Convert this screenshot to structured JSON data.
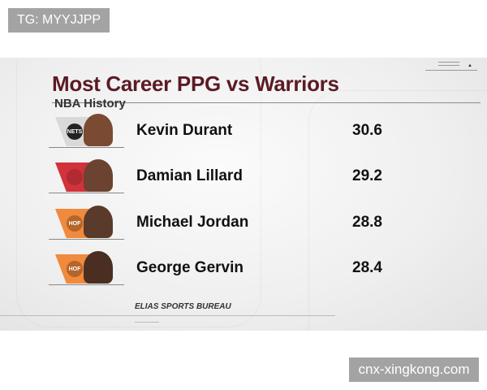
{
  "watermarks": {
    "top_left": "TG: MYYJJPP",
    "bottom_right": "cnx-xingkong.com"
  },
  "graphic": {
    "title": "Most Career PPG vs Warriors",
    "subtitle": "NBA History",
    "source": "ELIAS SPORTS BUREAU",
    "players": [
      {
        "name": "Kevin Durant",
        "ppg": "30.6",
        "team_logo": "nets-logo",
        "logo_text": "NETS",
        "logo_color": "#d9d9d9",
        "logo_badge": "#222222",
        "face_color": "#7a4a32"
      },
      {
        "name": "Damian Lillard",
        "ppg": "29.2",
        "team_logo": "trail-blazers-logo",
        "logo_text": "",
        "logo_color": "#d0333a",
        "logo_badge": "#b12a30",
        "face_color": "#6b4330"
      },
      {
        "name": "Michael Jordan",
        "ppg": "28.8",
        "team_logo": "hall-of-fame-logo",
        "logo_text": "HOF",
        "logo_color": "#f08a3c",
        "logo_badge": "#b5642a",
        "face_color": "#5a3a2a"
      },
      {
        "name": "George Gervin",
        "ppg": "28.4",
        "team_logo": "hall-of-fame-logo",
        "logo_text": "HOF",
        "logo_color": "#f08a3c",
        "logo_badge": "#b5642a",
        "face_color": "#4a2e22"
      }
    ]
  }
}
